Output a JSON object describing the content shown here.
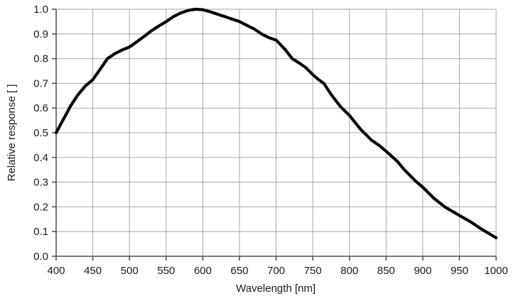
{
  "chart_data": {
    "type": "line",
    "xlabel": "Wavelength [nm]",
    "ylabel": "Relative response [ ]",
    "x_ticks": [
      400,
      450,
      500,
      550,
      600,
      650,
      700,
      750,
      800,
      850,
      900,
      950,
      1000
    ],
    "y_ticks": [
      "0.0",
      "0.1",
      "0.2",
      "0.3",
      "0.4",
      "0.5",
      "0.6",
      "0.7",
      "0.8",
      "0.9",
      "1.0"
    ],
    "xlim": [
      400,
      1000
    ],
    "ylim": [
      0.0,
      1.0
    ],
    "grid": true,
    "legend": "none",
    "colors": {
      "line": "#000000",
      "grid": "#a6a6a6",
      "axis": "#4d4d4d",
      "text": "#1a1a1a",
      "background": "#ffffff"
    },
    "series": [
      {
        "points": [
          [
            400,
            0.5
          ],
          [
            410,
            0.555
          ],
          [
            420,
            0.61
          ],
          [
            430,
            0.655
          ],
          [
            440,
            0.69
          ],
          [
            450,
            0.715
          ],
          [
            460,
            0.757
          ],
          [
            470,
            0.8
          ],
          [
            480,
            0.82
          ],
          [
            490,
            0.835
          ],
          [
            500,
            0.847
          ],
          [
            510,
            0.868
          ],
          [
            520,
            0.89
          ],
          [
            530,
            0.913
          ],
          [
            540,
            0.932
          ],
          [
            550,
            0.95
          ],
          [
            560,
            0.97
          ],
          [
            570,
            0.985
          ],
          [
            580,
            0.995
          ],
          [
            590,
            1.0
          ],
          [
            600,
            0.998
          ],
          [
            610,
            0.99
          ],
          [
            620,
            0.98
          ],
          [
            630,
            0.97
          ],
          [
            640,
            0.96
          ],
          [
            650,
            0.95
          ],
          [
            660,
            0.935
          ],
          [
            670,
            0.92
          ],
          [
            680,
            0.9
          ],
          [
            690,
            0.885
          ],
          [
            700,
            0.875
          ],
          [
            712,
            0.838
          ],
          [
            722,
            0.8
          ],
          [
            730,
            0.785
          ],
          [
            740,
            0.765
          ],
          [
            750,
            0.735
          ],
          [
            758,
            0.715
          ],
          [
            765,
            0.7
          ],
          [
            775,
            0.655
          ],
          [
            788,
            0.605
          ],
          [
            800,
            0.57
          ],
          [
            815,
            0.515
          ],
          [
            830,
            0.47
          ],
          [
            840,
            0.45
          ],
          [
            850,
            0.425
          ],
          [
            865,
            0.385
          ],
          [
            875,
            0.35
          ],
          [
            890,
            0.305
          ],
          [
            900,
            0.28
          ],
          [
            915,
            0.235
          ],
          [
            930,
            0.2
          ],
          [
            950,
            0.165
          ],
          [
            965,
            0.14
          ],
          [
            980,
            0.11
          ],
          [
            1000,
            0.075
          ]
        ]
      }
    ]
  }
}
